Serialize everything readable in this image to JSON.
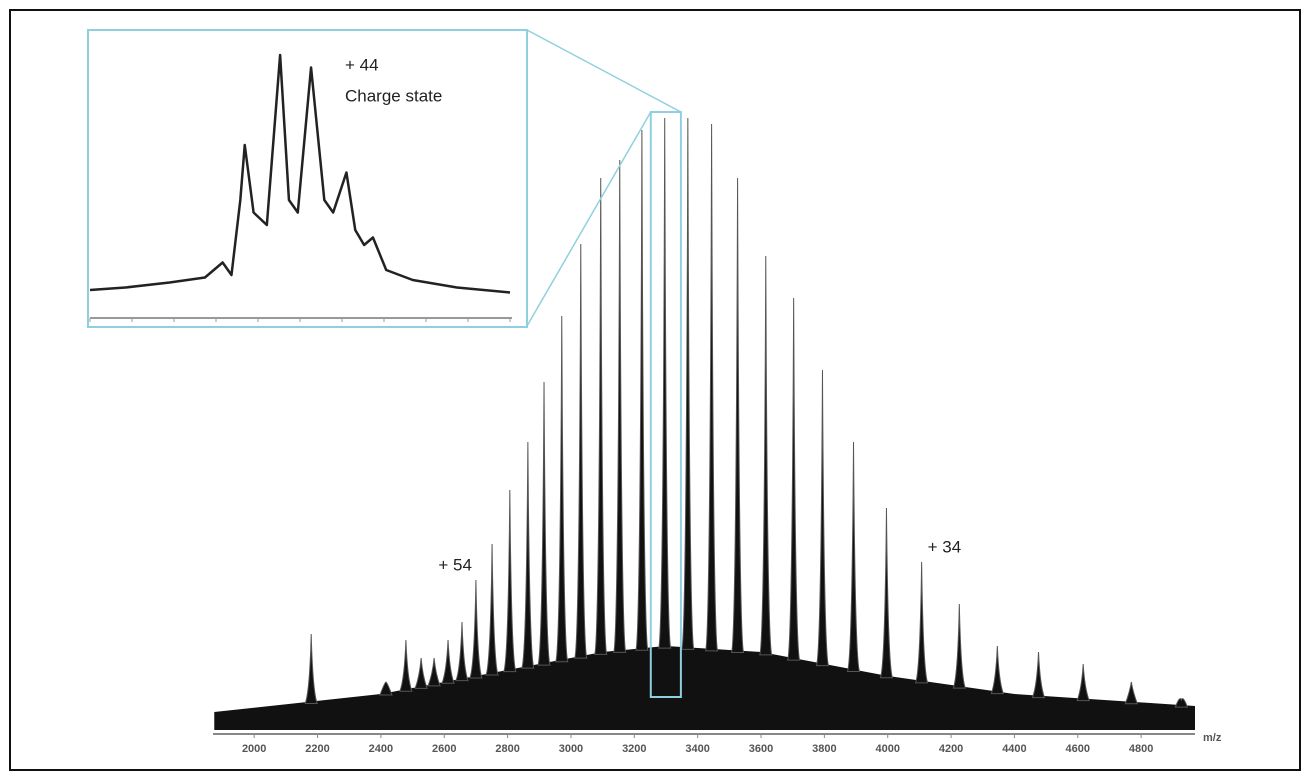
{
  "chart_data": [
    {
      "type": "spectrum",
      "x_label": "m/z",
      "xlim": [
        1870,
        4970
      ],
      "ylim": [
        0,
        100
      ],
      "xticks": [
        2000,
        2200,
        2400,
        2600,
        2800,
        3000,
        3200,
        3400,
        3600,
        3800,
        4000,
        4200,
        4400,
        4600,
        4800
      ],
      "color": "#111111",
      "peaks": {
        "x": [
          2180,
          2416,
          2479,
          2527,
          2568,
          2612,
          2656,
          2700,
          2751,
          2807,
          2864,
          2915,
          2971,
          3031,
          3094,
          3154,
          3224,
          3296,
          3369,
          3444,
          3526,
          3615,
          3703,
          3794,
          3892,
          3996,
          4107,
          4226,
          4346,
          4476,
          4617,
          4769,
          4927
        ],
        "values": [
          14,
          6,
          13,
          10,
          10,
          13,
          16,
          23,
          29,
          38,
          46,
          56,
          67,
          79,
          90,
          93,
          98,
          100,
          100,
          99,
          90,
          77,
          70,
          58,
          46,
          35,
          26,
          19,
          12,
          11,
          9,
          6,
          3
        ]
      },
      "baseline": {
        "x": [
          1874,
          2400,
          2800,
          3100,
          3300,
          3600,
          4000,
          4400,
          4970
        ],
        "values": [
          1,
          4,
          8,
          11,
          12,
          11,
          7,
          4,
          2
        ]
      },
      "annotations": [
        {
          "text": "+ 54",
          "x": 2700
        },
        {
          "text": "+ 34",
          "x": 4107
        }
      ]
    },
    {
      "type": "line",
      "title": "+ 44",
      "subtitle": "Charge state",
      "xlim": [
        3252,
        3347
      ],
      "ylim": [
        0,
        100
      ],
      "color": "#222222",
      "x": [
        3252,
        3260,
        3270,
        3278,
        3282,
        3284,
        3286,
        3287,
        3289,
        3292,
        3295,
        3297,
        3299,
        3302,
        3305,
        3307,
        3310,
        3312,
        3314,
        3316,
        3319,
        3325,
        3335,
        3347
      ],
      "values": [
        4,
        5,
        7,
        9,
        15,
        10,
        40,
        62,
        35,
        30,
        98,
        40,
        35,
        93,
        40,
        35,
        51,
        28,
        22,
        25,
        12,
        8,
        5,
        3
      ]
    }
  ]
}
